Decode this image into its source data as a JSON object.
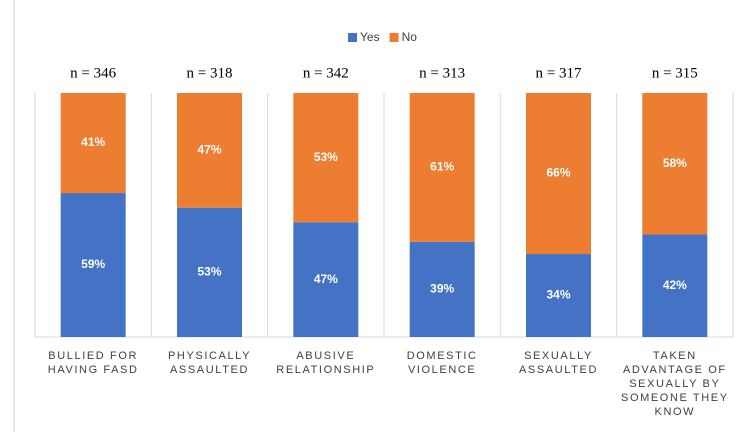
{
  "chart_data": {
    "type": "stacked_bar",
    "categories": [
      [
        "BULLIED FOR",
        "HAVING FASD"
      ],
      [
        "PHYSICALLY",
        "ASSAULTED"
      ],
      [
        "ABUSIVE",
        "RELATIONSHIP"
      ],
      [
        "DOMESTIC",
        "VIOLENCE"
      ],
      [
        "SEXUALLY",
        "ASSAULTED"
      ],
      [
        "TAKEN",
        "ADVANTAGE OF",
        "SEXUALLY BY",
        "SOMEONE THEY",
        "KNOW"
      ]
    ],
    "annotations": [
      "n = 346",
      "n = 318",
      "n = 342",
      "n = 313",
      "n = 317",
      "n = 315"
    ],
    "series": [
      {
        "name": "Yes",
        "color": "#4472c4",
        "values": [
          59,
          53,
          47,
          39,
          34,
          42
        ],
        "value_labels": [
          "59%",
          "53%",
          "47%",
          "39%",
          "34%",
          "42%"
        ]
      },
      {
        "name": "No",
        "color": "#ed7d31",
        "values": [
          41,
          47,
          53,
          61,
          66,
          58
        ],
        "value_labels": [
          "41%",
          "47%",
          "53%",
          "61%",
          "66%",
          "58%"
        ]
      }
    ],
    "ylim": [
      0,
      100
    ],
    "legend": "top"
  }
}
